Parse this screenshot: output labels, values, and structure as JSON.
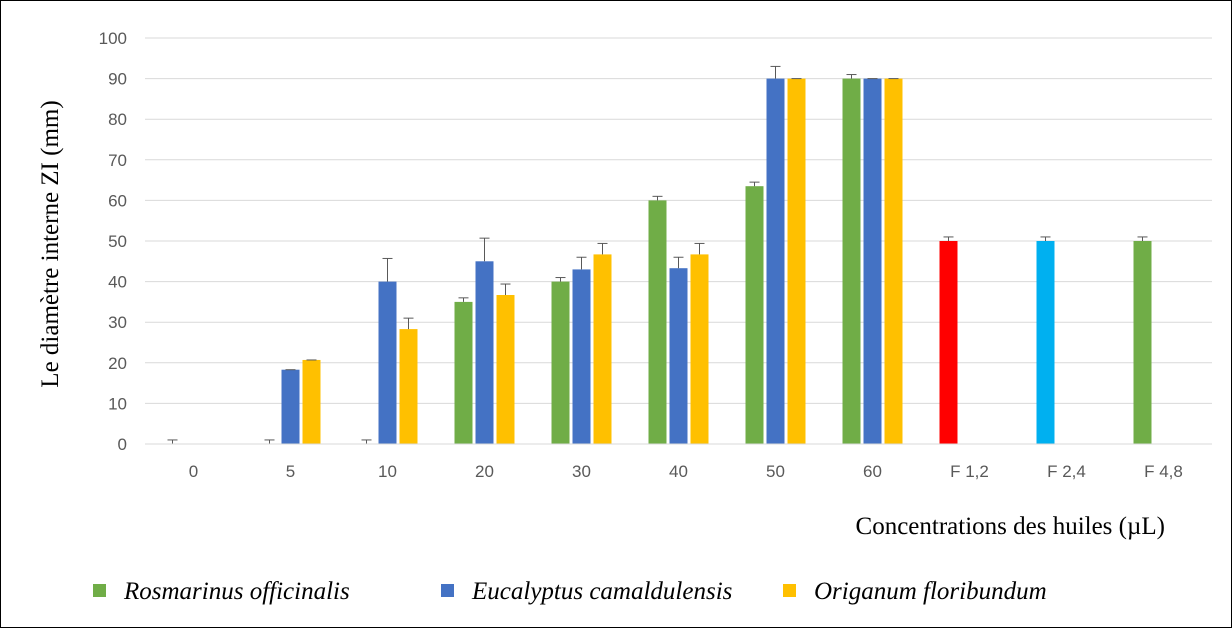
{
  "chart_data": {
    "type": "bar",
    "xlabel": "Concentrations des huiles (µL)",
    "ylabel": "Le diamètre interne ZI (mm)",
    "ylim": [
      0,
      100
    ],
    "y_ticks": [
      0,
      10,
      20,
      30,
      40,
      50,
      60,
      70,
      80,
      90,
      100
    ],
    "grid": true,
    "legend_position": "bottom",
    "categories": [
      "0",
      "5",
      "10",
      "20",
      "30",
      "40",
      "50",
      "60",
      "F 1,2",
      "F 2,4",
      "F 4,8"
    ],
    "series": [
      {
        "name": "Rosmarinus officinalis",
        "color": "#70ad47",
        "values": [
          0,
          0,
          0,
          35,
          40,
          60,
          63.5,
          90,
          null,
          null,
          null
        ],
        "errors": [
          1,
          1,
          1,
          1,
          1,
          1,
          1,
          1,
          null,
          null,
          null
        ]
      },
      {
        "name": "Eucalyptus camaldulensis",
        "color": "#4472c4",
        "values": [
          null,
          18.3,
          40,
          45,
          43,
          43.3,
          90,
          90,
          null,
          null,
          null
        ],
        "errors": [
          null,
          0,
          5.7,
          5.7,
          3,
          2.7,
          3,
          0,
          null,
          null,
          null
        ]
      },
      {
        "name": "Origanum floribundum",
        "color": "#ffc000",
        "values": [
          null,
          20.7,
          28.3,
          36.7,
          46.7,
          46.7,
          90,
          90,
          null,
          null,
          null
        ],
        "errors": [
          null,
          0,
          2.7,
          2.7,
          2.7,
          2.7,
          0,
          0,
          null,
          null,
          null
        ]
      }
    ],
    "control_bars": [
      {
        "category": "F 1,2",
        "value": 50,
        "error": 1,
        "color": "#ff0000"
      },
      {
        "category": "F 2,4",
        "value": 50,
        "error": 1,
        "color": "#00b0f0"
      },
      {
        "category": "F 4,8",
        "value": 50,
        "error": 1,
        "color": "#70ad47"
      }
    ]
  }
}
